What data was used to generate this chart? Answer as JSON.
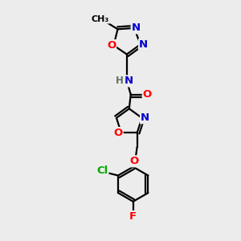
{
  "bg_color": "#ececec",
  "bond_color": "#000000",
  "atom_colors": {
    "N": "#0000cc",
    "O": "#ff0000",
    "Cl": "#00aa00",
    "F": "#ff0000",
    "H": "#607060",
    "C": "#000000"
  },
  "font_size": 9.5,
  "lw": 1.6,
  "figsize": [
    3.0,
    3.0
  ],
  "dpi": 100,
  "xlim": [
    0,
    300
  ],
  "ylim": [
    0,
    300
  ]
}
